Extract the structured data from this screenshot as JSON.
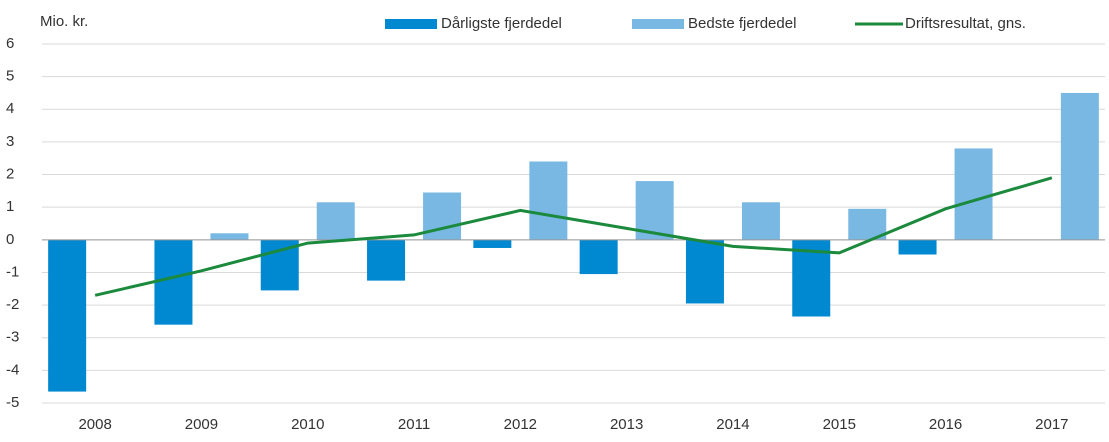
{
  "chart_data": {
    "type": "bar",
    "y_label": "Mio. kr.",
    "categories": [
      "2008",
      "2009",
      "2010",
      "2011",
      "2012",
      "2013",
      "2014",
      "2015",
      "2016",
      "2017"
    ],
    "series": [
      {
        "name": "Dårligste fjerdedel",
        "type": "bar",
        "color": "#0089d0",
        "values": [
          -4.65,
          -2.6,
          -1.55,
          -1.25,
          -0.25,
          -1.05,
          -1.95,
          -2.35,
          -0.45,
          null
        ]
      },
      {
        "name": "Bedste fjerdedel",
        "type": "bar",
        "color": "#7ab8e4",
        "values": [
          null,
          0.2,
          1.15,
          1.45,
          2.4,
          1.8,
          1.15,
          0.95,
          2.8,
          4.5
        ]
      },
      {
        "name": "Driftsresultat, gns.",
        "type": "line",
        "color": "#1b8a3c",
        "values": [
          -1.7,
          -0.95,
          -0.1,
          0.15,
          0.9,
          0.35,
          -0.2,
          -0.4,
          0.95,
          1.9
        ]
      }
    ],
    "ylim": [
      -5,
      6
    ],
    "yticks": [
      -5,
      -4,
      -3,
      -2,
      -1,
      0,
      1,
      2,
      3,
      4,
      5,
      6
    ],
    "grid": true,
    "legend": "top"
  }
}
